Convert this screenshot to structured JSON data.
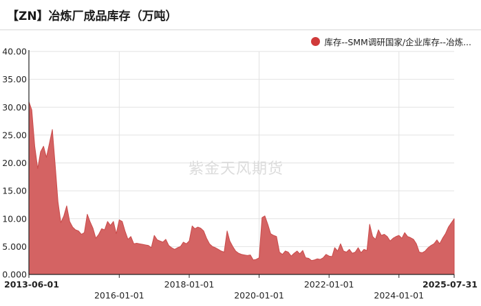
{
  "title": "【ZN】冶炼厂成品库存（万吨）",
  "watermark": "紫金天风期货",
  "colors": {
    "series": "#c94a4a",
    "series_fill": "#d46363",
    "legend_dot": "#d03a3a",
    "grid": "#e2e2e2"
  },
  "chart_data": {
    "type": "area",
    "title": "【ZN】冶炼厂成品库存（万吨）",
    "series": [
      {
        "name": "库存--SMM调研国家/企业库存--冶炼...",
        "points": [
          [
            "2013-06-01",
            31.0
          ],
          [
            "2013-07-01",
            29.5
          ],
          [
            "2013-08-01",
            23.0
          ],
          [
            "2013-09-01",
            19.0
          ],
          [
            "2013-10-01",
            22.0
          ],
          [
            "2013-11-01",
            23.0
          ],
          [
            "2013-12-01",
            21.0
          ],
          [
            "2014-01-01",
            23.5
          ],
          [
            "2014-02-01",
            26.0
          ],
          [
            "2014-03-01",
            20.0
          ],
          [
            "2014-04-01",
            13.0
          ],
          [
            "2014-05-01",
            9.3
          ],
          [
            "2014-06-01",
            10.5
          ],
          [
            "2014-07-01",
            12.3
          ],
          [
            "2014-08-01",
            9.5
          ],
          [
            "2014-09-01",
            8.5
          ],
          [
            "2014-10-01",
            8.0
          ],
          [
            "2014-11-01",
            7.8
          ],
          [
            "2014-12-01",
            7.2
          ],
          [
            "2015-01-01",
            7.5
          ],
          [
            "2015-02-01",
            10.8
          ],
          [
            "2015-03-01",
            9.5
          ],
          [
            "2015-04-01",
            8.3
          ],
          [
            "2015-05-01",
            6.5
          ],
          [
            "2015-06-01",
            7.2
          ],
          [
            "2015-07-01",
            8.2
          ],
          [
            "2015-08-01",
            8.0
          ],
          [
            "2015-09-01",
            9.5
          ],
          [
            "2015-10-01",
            8.8
          ],
          [
            "2015-11-01",
            9.5
          ],
          [
            "2015-12-01",
            7.3
          ],
          [
            "2016-01-01",
            9.8
          ],
          [
            "2016-02-01",
            9.5
          ],
          [
            "2016-03-01",
            7.8
          ],
          [
            "2016-04-01",
            6.3
          ],
          [
            "2016-05-01",
            6.8
          ],
          [
            "2016-06-01",
            5.5
          ],
          [
            "2016-07-01",
            5.6
          ],
          [
            "2016-08-01",
            5.5
          ],
          [
            "2016-09-01",
            5.4
          ],
          [
            "2016-10-01",
            5.3
          ],
          [
            "2016-11-01",
            5.2
          ],
          [
            "2016-12-01",
            4.8
          ],
          [
            "2017-01-01",
            7.0
          ],
          [
            "2017-02-01",
            6.2
          ],
          [
            "2017-03-01",
            6.0
          ],
          [
            "2017-04-01",
            5.8
          ],
          [
            "2017-05-01",
            6.3
          ],
          [
            "2017-06-01",
            5.2
          ],
          [
            "2017-07-01",
            4.8
          ],
          [
            "2017-08-01",
            4.5
          ],
          [
            "2017-09-01",
            4.8
          ],
          [
            "2017-10-01",
            5.0
          ],
          [
            "2017-11-01",
            5.8
          ],
          [
            "2017-12-01",
            5.5
          ],
          [
            "2018-01-01",
            6.0
          ],
          [
            "2018-02-01",
            8.7
          ],
          [
            "2018-03-01",
            8.2
          ],
          [
            "2018-04-01",
            8.5
          ],
          [
            "2018-05-01",
            8.3
          ],
          [
            "2018-06-01",
            7.8
          ],
          [
            "2018-07-01",
            6.5
          ],
          [
            "2018-08-01",
            5.5
          ],
          [
            "2018-09-01",
            5.0
          ],
          [
            "2018-10-01",
            4.8
          ],
          [
            "2018-11-01",
            4.5
          ],
          [
            "2018-12-01",
            4.2
          ],
          [
            "2019-01-01",
            4.0
          ],
          [
            "2019-02-01",
            7.8
          ],
          [
            "2019-03-01",
            6.0
          ],
          [
            "2019-04-01",
            5.0
          ],
          [
            "2019-05-01",
            4.2
          ],
          [
            "2019-06-01",
            3.8
          ],
          [
            "2019-07-01",
            3.6
          ],
          [
            "2019-08-01",
            3.5
          ],
          [
            "2019-09-01",
            3.4
          ],
          [
            "2019-10-01",
            3.5
          ],
          [
            "2019-11-01",
            2.6
          ],
          [
            "2019-12-01",
            2.7
          ],
          [
            "2020-01-01",
            3.0
          ],
          [
            "2020-02-01",
            10.2
          ],
          [
            "2020-03-01",
            10.5
          ],
          [
            "2020-04-01",
            9.0
          ],
          [
            "2020-05-01",
            7.3
          ],
          [
            "2020-06-01",
            7.0
          ],
          [
            "2020-07-01",
            6.8
          ],
          [
            "2020-08-01",
            4.0
          ],
          [
            "2020-09-01",
            3.6
          ],
          [
            "2020-10-01",
            4.2
          ],
          [
            "2020-11-01",
            4.0
          ],
          [
            "2020-12-01",
            3.3
          ],
          [
            "2021-01-01",
            3.8
          ],
          [
            "2021-02-01",
            4.2
          ],
          [
            "2021-03-01",
            3.7
          ],
          [
            "2021-04-01",
            4.3
          ],
          [
            "2021-05-01",
            3.0
          ],
          [
            "2021-06-01",
            2.9
          ],
          [
            "2021-07-01",
            2.5
          ],
          [
            "2021-08-01",
            2.6
          ],
          [
            "2021-09-01",
            2.8
          ],
          [
            "2021-10-01",
            2.7
          ],
          [
            "2021-11-01",
            3.0
          ],
          [
            "2021-12-01",
            3.6
          ],
          [
            "2022-01-01",
            3.3
          ],
          [
            "2022-02-01",
            3.2
          ],
          [
            "2022-03-01",
            4.8
          ],
          [
            "2022-04-01",
            4.2
          ],
          [
            "2022-05-01",
            5.5
          ],
          [
            "2022-06-01",
            4.2
          ],
          [
            "2022-07-01",
            4.0
          ],
          [
            "2022-08-01",
            4.5
          ],
          [
            "2022-09-01",
            3.8
          ],
          [
            "2022-10-01",
            4.0
          ],
          [
            "2022-11-01",
            4.8
          ],
          [
            "2022-12-01",
            3.9
          ],
          [
            "2023-01-01",
            4.5
          ],
          [
            "2023-02-01",
            4.3
          ],
          [
            "2023-03-01",
            9.0
          ],
          [
            "2023-04-01",
            6.8
          ],
          [
            "2023-05-01",
            6.3
          ],
          [
            "2023-06-01",
            8.0
          ],
          [
            "2023-07-01",
            7.0
          ],
          [
            "2023-08-01",
            7.2
          ],
          [
            "2023-09-01",
            6.8
          ],
          [
            "2023-10-01",
            6.0
          ],
          [
            "2023-11-01",
            6.5
          ],
          [
            "2023-12-01",
            6.8
          ],
          [
            "2024-01-01",
            7.0
          ],
          [
            "2024-02-01",
            6.5
          ],
          [
            "2024-03-01",
            7.5
          ],
          [
            "2024-04-01",
            6.8
          ],
          [
            "2024-05-01",
            6.6
          ],
          [
            "2024-06-01",
            6.3
          ],
          [
            "2024-07-01",
            5.5
          ],
          [
            "2024-08-01",
            4.0
          ],
          [
            "2024-09-01",
            3.9
          ],
          [
            "2024-10-01",
            4.2
          ],
          [
            "2024-11-01",
            4.8
          ],
          [
            "2024-12-01",
            5.2
          ],
          [
            "2025-01-01",
            5.5
          ],
          [
            "2025-02-01",
            6.2
          ],
          [
            "2025-03-01",
            5.5
          ],
          [
            "2025-04-01",
            6.5
          ],
          [
            "2025-05-01",
            7.3
          ],
          [
            "2025-06-01",
            8.5
          ],
          [
            "2025-07-31",
            10.0
          ]
        ]
      }
    ],
    "ylim": [
      0,
      40
    ],
    "y_ticks": [
      "0.000",
      "5.000",
      "10.00",
      "15.00",
      "20.00",
      "25.00",
      "30.00",
      "35.00",
      "40.00"
    ],
    "x_range": [
      "2013-06-01",
      "2025-07-31"
    ],
    "x_ticks": [
      {
        "date": "2013-06-01",
        "label": "2013-06-01",
        "row": 1,
        "bold": true
      },
      {
        "date": "2016-01-01",
        "label": "2016-01-01",
        "row": 2,
        "bold": false
      },
      {
        "date": "2018-01-01",
        "label": "2018-01-01",
        "row": 1,
        "bold": false
      },
      {
        "date": "2020-01-01",
        "label": "2020-01-01",
        "row": 2,
        "bold": false
      },
      {
        "date": "2022-01-01",
        "label": "2022-01-01",
        "row": 1,
        "bold": false
      },
      {
        "date": "2024-01-01",
        "label": "2024-01-01",
        "row": 2,
        "bold": false
      },
      {
        "date": "2025-07-31",
        "label": "2025-07-31",
        "row": 1,
        "bold": true
      }
    ],
    "grid_x": [
      "2016-01-01",
      "2020-01-01",
      "2024-01-01"
    ],
    "grid": true,
    "legend_position": "top-right"
  }
}
